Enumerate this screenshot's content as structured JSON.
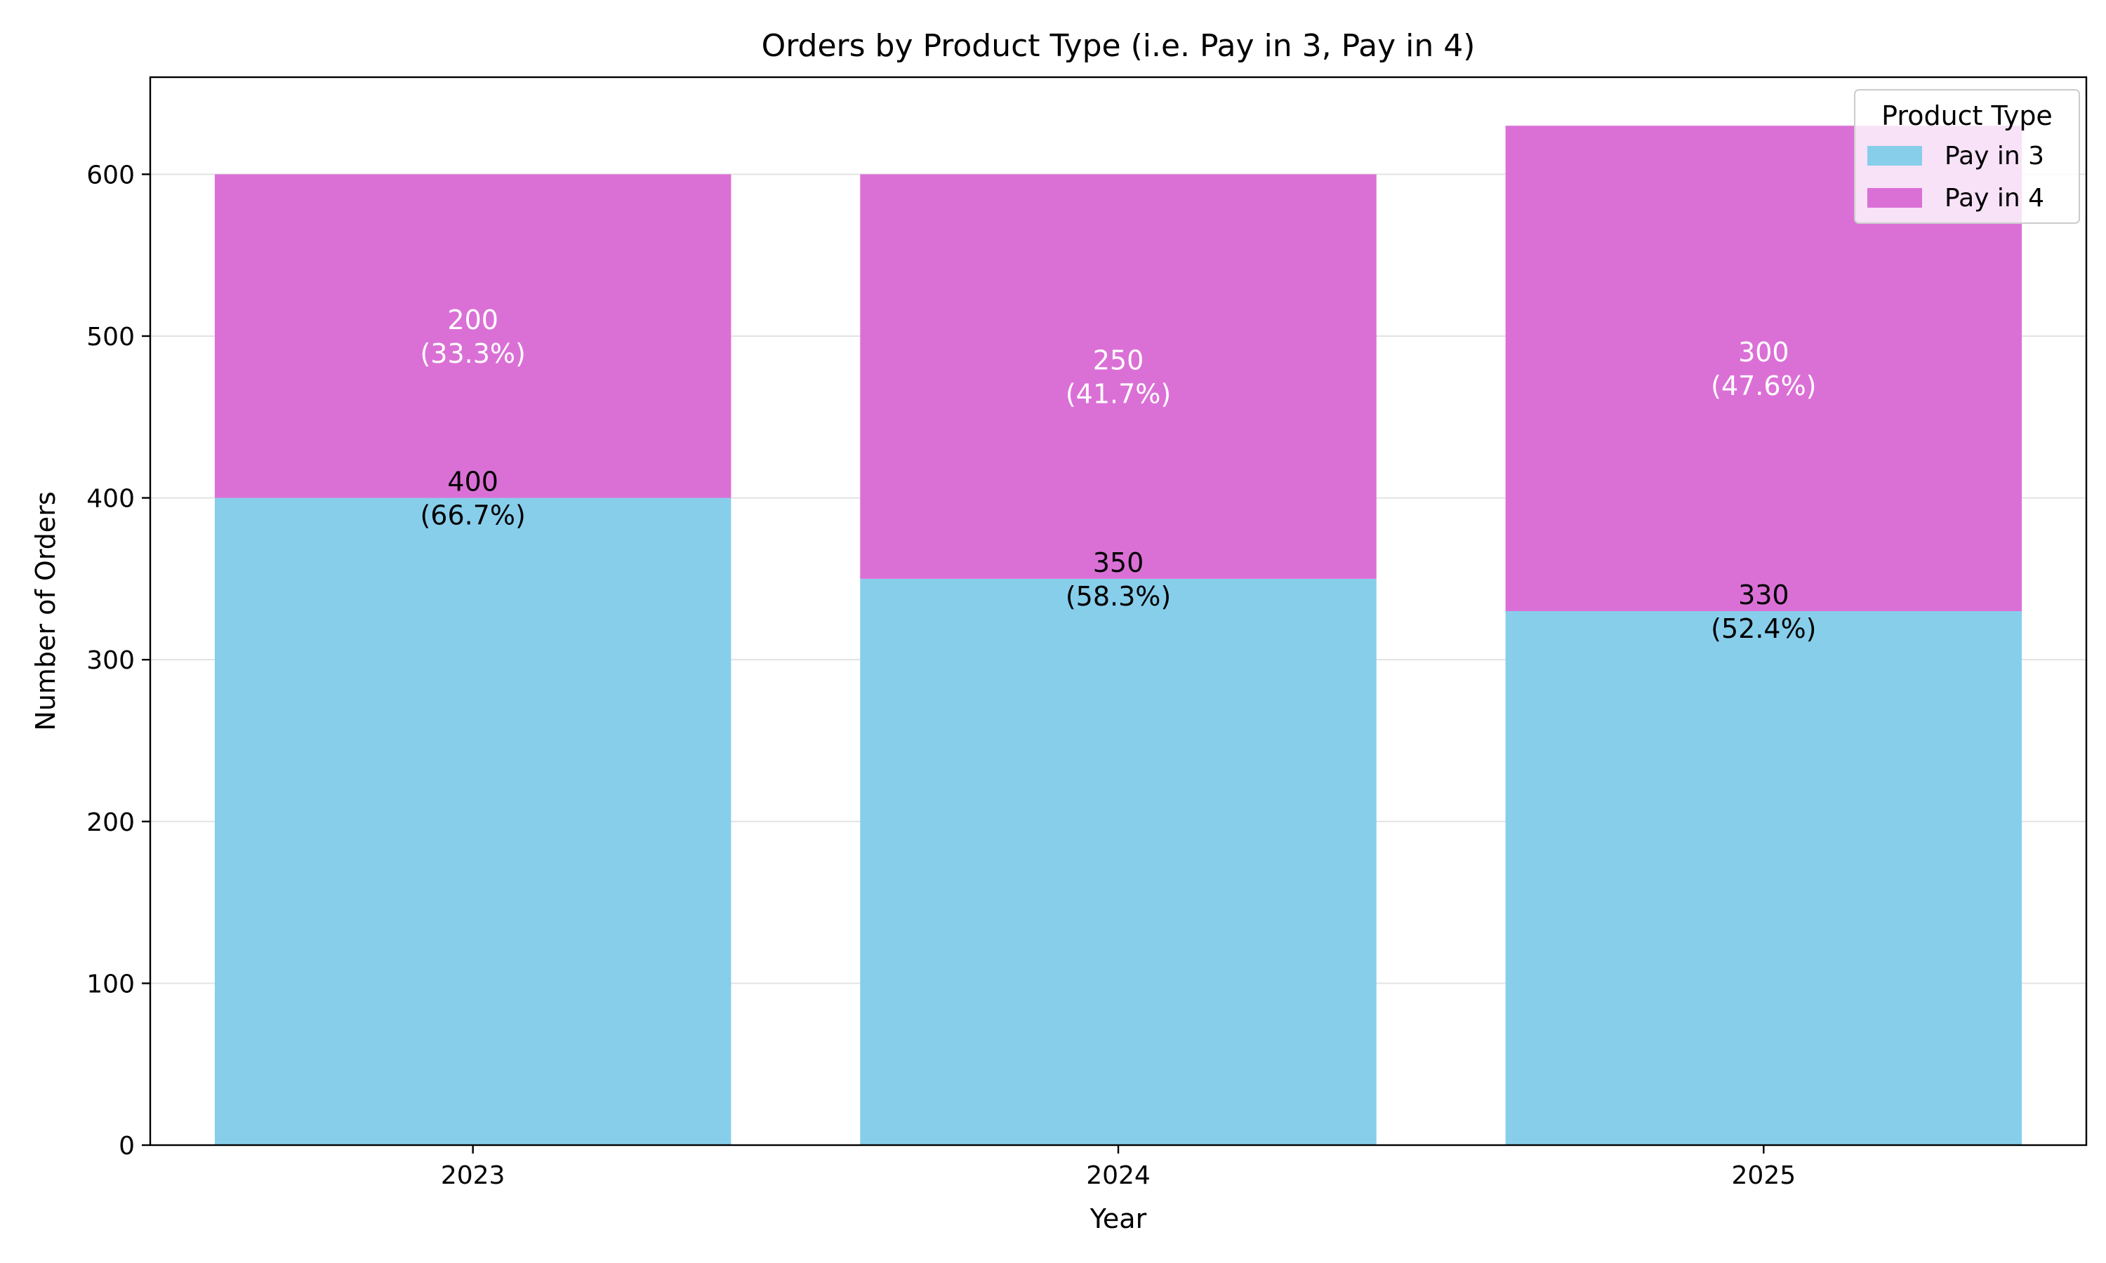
{
  "chart_data": {
    "type": "bar",
    "stacked": true,
    "title": "Orders by Product Type (i.e. Pay in 3, Pay in 4)",
    "xlabel": "Year",
    "ylabel": "Number of Orders",
    "categories": [
      "2023",
      "2024",
      "2025"
    ],
    "ylim": [
      0,
      660
    ],
    "yticks": [
      0,
      100,
      200,
      300,
      400,
      500,
      600
    ],
    "grid": "horizontal",
    "legend": {
      "title": "Product Type",
      "position": "top-right"
    },
    "series": [
      {
        "name": "Pay in 3",
        "color": "#87ceeb",
        "label_color": "#000000",
        "values": [
          400,
          350,
          330
        ],
        "labels": [
          "400\n(66.7%)",
          "350\n(58.3%)",
          "330\n(52.4%)"
        ]
      },
      {
        "name": "Pay in 4",
        "color": "#da70d6",
        "label_color": "#ffffff",
        "values": [
          200,
          250,
          300
        ],
        "labels": [
          "200\n(33.3%)",
          "250\n(41.7%)",
          "300\n(47.6%)"
        ]
      }
    ]
  }
}
